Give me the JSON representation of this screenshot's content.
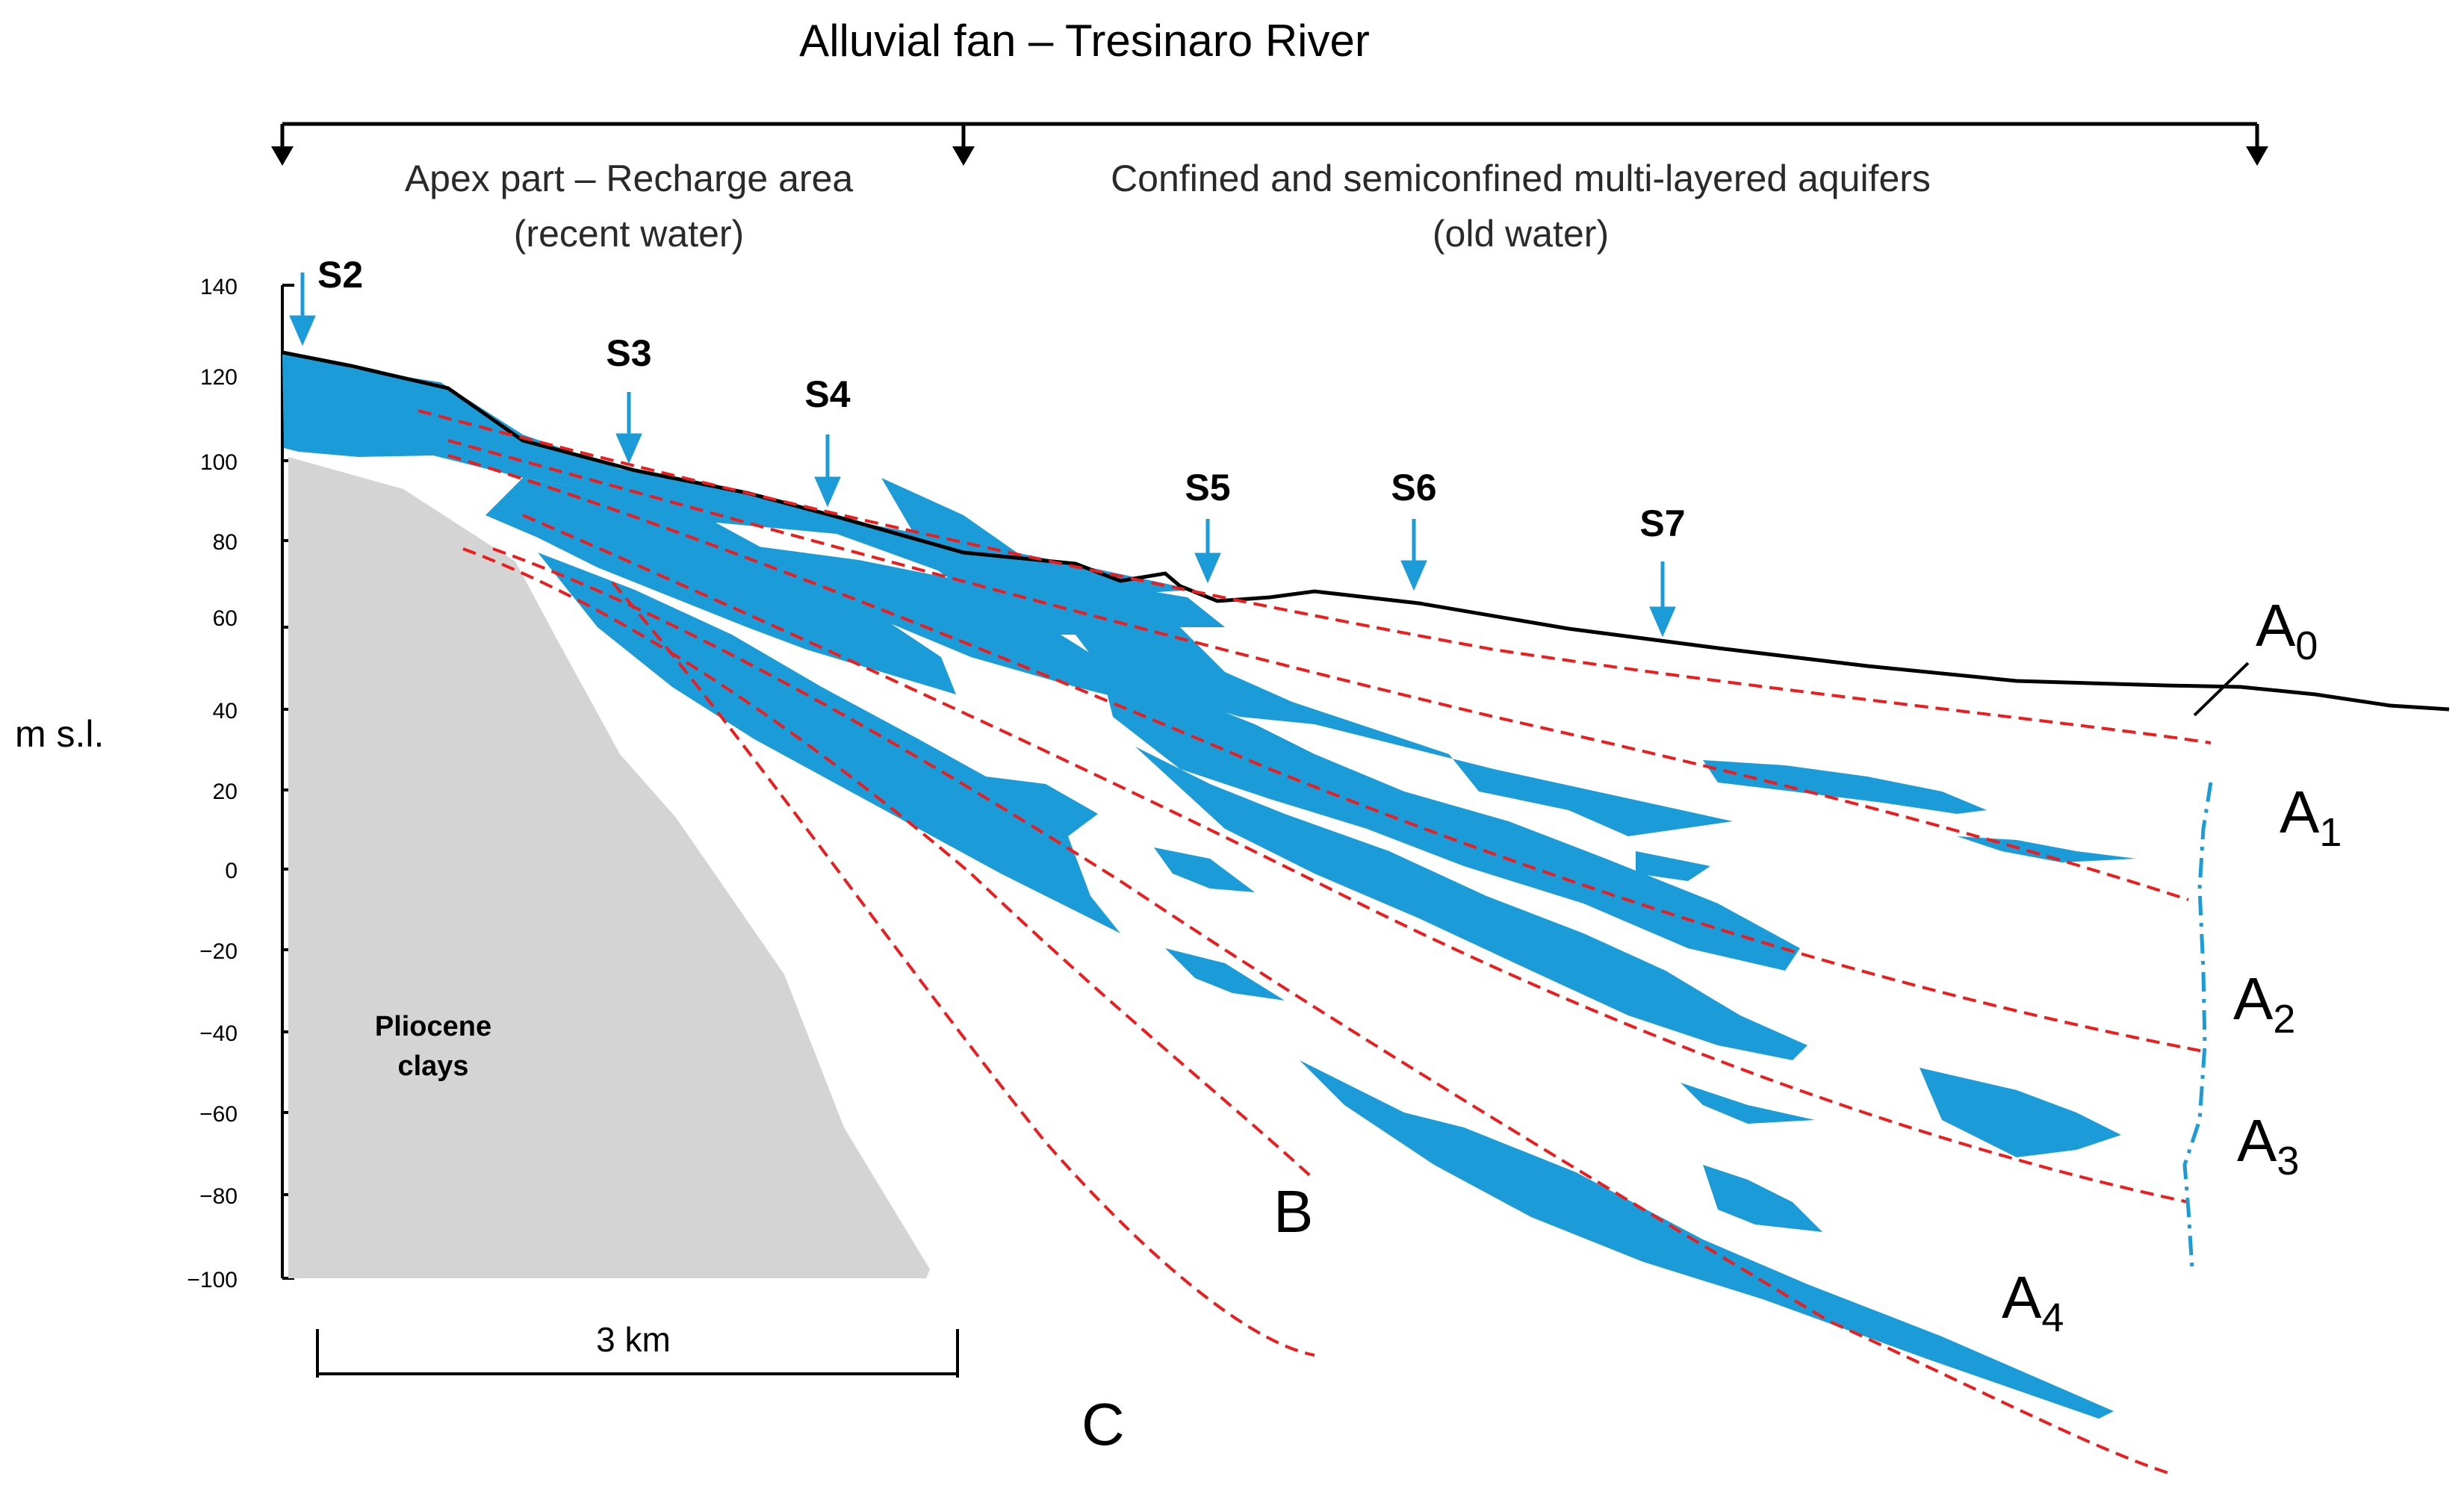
{
  "title": "Alluvial fan – Tresinaro River",
  "zones": {
    "apex_line1": "Apex part – Recharge area",
    "apex_line2": "(recent water)",
    "confined_line1": "Confined and semiconfined multi-layered aquifers",
    "confined_line2": "(old water)"
  },
  "y_axis": {
    "label": "m s.l.",
    "ticks": [
      "140",
      "120",
      "100",
      "80",
      "60",
      "40",
      "20",
      "0",
      "−20",
      "−40",
      "−60",
      "−80",
      "−100"
    ]
  },
  "wells": [
    "S2",
    "S3",
    "S4",
    "S5",
    "S6",
    "S7"
  ],
  "pliocene": {
    "line1": "Pliocene",
    "line2": "clays"
  },
  "units": {
    "A0": {
      "main": "A",
      "sub": "0"
    },
    "A1": {
      "main": "A",
      "sub": "1"
    },
    "A2": {
      "main": "A",
      "sub": "2"
    },
    "A3": {
      "main": "A",
      "sub": "3"
    },
    "A4": {
      "main": "A",
      "sub": "4"
    },
    "B": "B",
    "C": "C"
  },
  "scale_bar": "3 km",
  "colors": {
    "aquifer": "#1b9cd8",
    "clay": "#d4d4d4",
    "boundary": "#ee1c1c",
    "arrow": "#1b9cd8"
  }
}
